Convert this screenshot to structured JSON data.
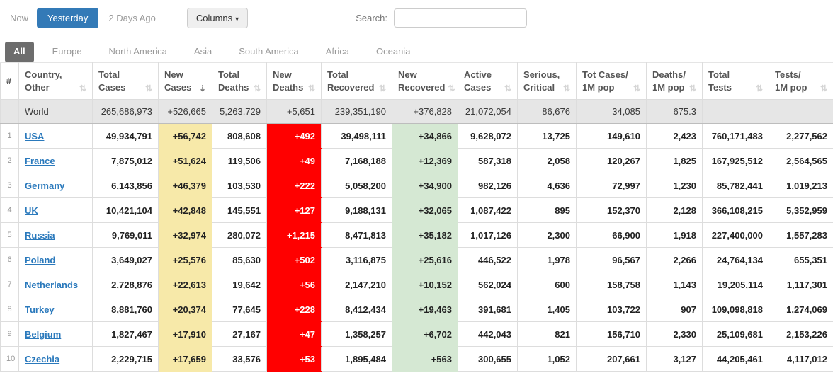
{
  "toolbar": {
    "now_label": "Now",
    "yesterday_label": "Yesterday",
    "two_days_ago_label": "2 Days Ago",
    "columns_label": "Columns",
    "columns_caret": "▾",
    "search_label": "Search:",
    "search_value": ""
  },
  "tabs": [
    {
      "label": "All",
      "active": true
    },
    {
      "label": "Europe",
      "active": false
    },
    {
      "label": "North America",
      "active": false
    },
    {
      "label": "Asia",
      "active": false
    },
    {
      "label": "South America",
      "active": false
    },
    {
      "label": "Africa",
      "active": false
    },
    {
      "label": "Oceania",
      "active": false
    }
  ],
  "colors": {
    "accent_blue": "#337ab7",
    "link_blue": "#2a79bc",
    "active_tab_bg": "#6d6d6d",
    "new_cases_bg": "#f7e9a9",
    "new_deaths_bg": "#ff0000",
    "new_recovered_bg": "#d5e8d3",
    "world_row_bg": "#e6e6e6"
  },
  "table": {
    "sort_icon_inactive": "⇅",
    "sort_icon_active_desc": "⇣",
    "columns": [
      {
        "key": "rank",
        "label_lines": [
          "#"
        ],
        "sortable": false
      },
      {
        "key": "country",
        "label_lines": [
          "Country,",
          "Other"
        ],
        "sortable": true
      },
      {
        "key": "total_cases",
        "label_lines": [
          "Total",
          "Cases"
        ],
        "sortable": true
      },
      {
        "key": "new_cases",
        "label_lines": [
          "New",
          "Cases"
        ],
        "sortable": true,
        "sorted": "desc",
        "highlight": "yellow"
      },
      {
        "key": "total_deaths",
        "label_lines": [
          "Total",
          "Deaths"
        ],
        "sortable": true
      },
      {
        "key": "new_deaths",
        "label_lines": [
          "New",
          "Deaths"
        ],
        "sortable": true,
        "highlight": "red"
      },
      {
        "key": "total_recovered",
        "label_lines": [
          "Total",
          "Recovered"
        ],
        "sortable": true
      },
      {
        "key": "new_recovered",
        "label_lines": [
          "New",
          "Recovered"
        ],
        "sortable": true,
        "highlight": "green"
      },
      {
        "key": "active_cases",
        "label_lines": [
          "Active",
          "Cases"
        ],
        "sortable": true
      },
      {
        "key": "serious_critical",
        "label_lines": [
          "Serious,",
          "Critical"
        ],
        "sortable": true
      },
      {
        "key": "cases_per_1m",
        "label_lines": [
          "Tot Cases/",
          "1M pop"
        ],
        "sortable": true
      },
      {
        "key": "deaths_per_1m",
        "label_lines": [
          "Deaths/",
          "1M pop"
        ],
        "sortable": true
      },
      {
        "key": "total_tests",
        "label_lines": [
          "Total",
          "Tests"
        ],
        "sortable": true
      },
      {
        "key": "tests_per_1m",
        "label_lines": [
          "Tests/",
          "1M pop"
        ],
        "sortable": true
      }
    ],
    "world_row": {
      "rank": "",
      "country": "World",
      "total_cases": "265,686,973",
      "new_cases": "+526,665",
      "total_deaths": "5,263,729",
      "new_deaths": "+5,651",
      "total_recovered": "239,351,190",
      "new_recovered": "+376,828",
      "active_cases": "21,072,054",
      "serious_critical": "86,676",
      "cases_per_1m": "34,085",
      "deaths_per_1m": "675.3",
      "total_tests": "",
      "tests_per_1m": ""
    },
    "rows": [
      {
        "rank": "1",
        "country": "USA",
        "total_cases": "49,934,791",
        "new_cases": "+56,742",
        "total_deaths": "808,608",
        "new_deaths": "+492",
        "total_recovered": "39,498,111",
        "new_recovered": "+34,866",
        "active_cases": "9,628,072",
        "serious_critical": "13,725",
        "cases_per_1m": "149,610",
        "deaths_per_1m": "2,423",
        "total_tests": "760,171,483",
        "tests_per_1m": "2,277,562"
      },
      {
        "rank": "2",
        "country": "France",
        "total_cases": "7,875,012",
        "new_cases": "+51,624",
        "total_deaths": "119,506",
        "new_deaths": "+49",
        "total_recovered": "7,168,188",
        "new_recovered": "+12,369",
        "active_cases": "587,318",
        "serious_critical": "2,058",
        "cases_per_1m": "120,267",
        "deaths_per_1m": "1,825",
        "total_tests": "167,925,512",
        "tests_per_1m": "2,564,565"
      },
      {
        "rank": "3",
        "country": "Germany",
        "total_cases": "6,143,856",
        "new_cases": "+46,379",
        "total_deaths": "103,530",
        "new_deaths": "+222",
        "total_recovered": "5,058,200",
        "new_recovered": "+34,900",
        "active_cases": "982,126",
        "serious_critical": "4,636",
        "cases_per_1m": "72,997",
        "deaths_per_1m": "1,230",
        "total_tests": "85,782,441",
        "tests_per_1m": "1,019,213"
      },
      {
        "rank": "4",
        "country": "UK",
        "total_cases": "10,421,104",
        "new_cases": "+42,848",
        "total_deaths": "145,551",
        "new_deaths": "+127",
        "total_recovered": "9,188,131",
        "new_recovered": "+32,065",
        "active_cases": "1,087,422",
        "serious_critical": "895",
        "cases_per_1m": "152,370",
        "deaths_per_1m": "2,128",
        "total_tests": "366,108,215",
        "tests_per_1m": "5,352,959"
      },
      {
        "rank": "5",
        "country": "Russia",
        "total_cases": "9,769,011",
        "new_cases": "+32,974",
        "total_deaths": "280,072",
        "new_deaths": "+1,215",
        "total_recovered": "8,471,813",
        "new_recovered": "+35,182",
        "active_cases": "1,017,126",
        "serious_critical": "2,300",
        "cases_per_1m": "66,900",
        "deaths_per_1m": "1,918",
        "total_tests": "227,400,000",
        "tests_per_1m": "1,557,283"
      },
      {
        "rank": "6",
        "country": "Poland",
        "total_cases": "3,649,027",
        "new_cases": "+25,576",
        "total_deaths": "85,630",
        "new_deaths": "+502",
        "total_recovered": "3,116,875",
        "new_recovered": "+25,616",
        "active_cases": "446,522",
        "serious_critical": "1,978",
        "cases_per_1m": "96,567",
        "deaths_per_1m": "2,266",
        "total_tests": "24,764,134",
        "tests_per_1m": "655,351"
      },
      {
        "rank": "7",
        "country": "Netherlands",
        "total_cases": "2,728,876",
        "new_cases": "+22,613",
        "total_deaths": "19,642",
        "new_deaths": "+56",
        "total_recovered": "2,147,210",
        "new_recovered": "+10,152",
        "active_cases": "562,024",
        "serious_critical": "600",
        "cases_per_1m": "158,758",
        "deaths_per_1m": "1,143",
        "total_tests": "19,205,114",
        "tests_per_1m": "1,117,301"
      },
      {
        "rank": "8",
        "country": "Turkey",
        "total_cases": "8,881,760",
        "new_cases": "+20,374",
        "total_deaths": "77,645",
        "new_deaths": "+228",
        "total_recovered": "8,412,434",
        "new_recovered": "+19,463",
        "active_cases": "391,681",
        "serious_critical": "1,405",
        "cases_per_1m": "103,722",
        "deaths_per_1m": "907",
        "total_tests": "109,098,818",
        "tests_per_1m": "1,274,069"
      },
      {
        "rank": "9",
        "country": "Belgium",
        "total_cases": "1,827,467",
        "new_cases": "+17,910",
        "total_deaths": "27,167",
        "new_deaths": "+47",
        "total_recovered": "1,358,257",
        "new_recovered": "+6,702",
        "active_cases": "442,043",
        "serious_critical": "821",
        "cases_per_1m": "156,710",
        "deaths_per_1m": "2,330",
        "total_tests": "25,109,681",
        "tests_per_1m": "2,153,226"
      },
      {
        "rank": "10",
        "country": "Czechia",
        "total_cases": "2,229,715",
        "new_cases": "+17,659",
        "total_deaths": "33,576",
        "new_deaths": "+53",
        "total_recovered": "1,895,484",
        "new_recovered": "+563",
        "active_cases": "300,655",
        "serious_critical": "1,052",
        "cases_per_1m": "207,661",
        "deaths_per_1m": "3,127",
        "total_tests": "44,205,461",
        "tests_per_1m": "4,117,012"
      }
    ]
  }
}
